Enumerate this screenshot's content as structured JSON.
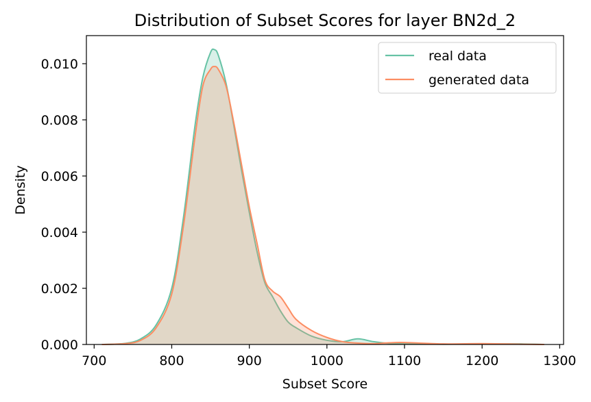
{
  "chart_data": {
    "type": "area",
    "title": "Distribution of Subset Scores for layer BN2d_2",
    "xlabel": "Subset Score",
    "ylabel": "Density",
    "xlim": [
      690,
      1305
    ],
    "ylim": [
      0,
      0.011
    ],
    "xticks": [
      700,
      800,
      900,
      1000,
      1100,
      1200,
      1300
    ],
    "yticks": [
      0.0,
      0.002,
      0.004,
      0.006,
      0.008,
      0.01
    ],
    "ytick_labels": [
      "0.000",
      "0.002",
      "0.004",
      "0.006",
      "0.008",
      "0.010"
    ],
    "grid": false,
    "legend_position": "top-right",
    "series": [
      {
        "name": "real data",
        "color": "#66c2a5",
        "x": [
          710,
          740,
          760,
          780,
          800,
          815,
          830,
          840,
          850,
          855,
          860,
          870,
          880,
          890,
          900,
          910,
          920,
          930,
          940,
          950,
          960,
          980,
          1000,
          1020,
          1040,
          1060,
          1080,
          1100,
          1150,
          1200,
          1250,
          1280
        ],
        "y": [
          0.0,
          4e-05,
          0.0002,
          0.0007,
          0.002,
          0.0045,
          0.0078,
          0.0095,
          0.0104,
          0.0105,
          0.0103,
          0.0093,
          0.0078,
          0.0062,
          0.0047,
          0.0033,
          0.0022,
          0.0017,
          0.0012,
          0.0008,
          0.0006,
          0.0003,
          0.00015,
          0.0001,
          0.0002,
          0.0001,
          4e-05,
          2e-05,
          1e-05,
          2e-05,
          2e-05,
          0.0
        ]
      },
      {
        "name": "generated data",
        "color": "#fc8d62",
        "x": [
          710,
          740,
          760,
          780,
          800,
          815,
          830,
          840,
          850,
          855,
          860,
          870,
          880,
          890,
          900,
          910,
          920,
          930,
          940,
          950,
          960,
          980,
          1000,
          1020,
          1040,
          1060,
          1080,
          1100,
          1150,
          1200,
          1250,
          1280
        ],
        "y": [
          0.0,
          3e-05,
          0.00015,
          0.0006,
          0.0018,
          0.0042,
          0.0074,
          0.0092,
          0.0098,
          0.0099,
          0.0098,
          0.0092,
          0.0079,
          0.0064,
          0.0049,
          0.0036,
          0.0023,
          0.0019,
          0.0017,
          0.0013,
          0.0009,
          0.0005,
          0.00025,
          0.0001,
          5e-05,
          3e-05,
          6e-05,
          7e-05,
          2e-05,
          3e-05,
          1e-05,
          0.0
        ]
      }
    ]
  }
}
